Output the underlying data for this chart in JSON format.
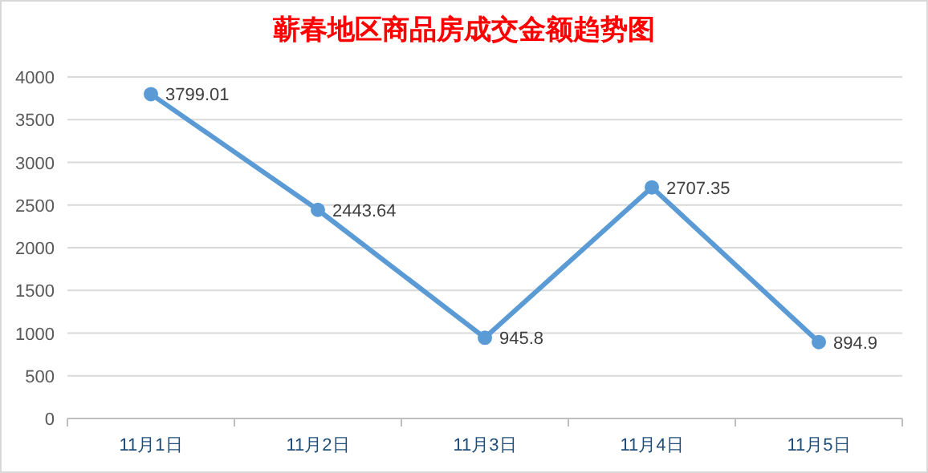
{
  "chart_data": {
    "type": "line",
    "title": "蕲春地区商品房成交金额趋势图",
    "categories": [
      "11月1日",
      "11月2日",
      "11月3日",
      "11月4日",
      "11月5日"
    ],
    "series": [
      {
        "color": "#5b9bd5",
        "values": [
          3799.01,
          2443.64,
          945.8,
          2707.35,
          894.9
        ]
      }
    ],
    "ylim": [
      0,
      4000
    ],
    "yticks": [
      0,
      500,
      1000,
      1500,
      2000,
      2500,
      3000,
      3500,
      4000
    ],
    "grid": "y",
    "marker": "circle",
    "data_labels": true
  }
}
